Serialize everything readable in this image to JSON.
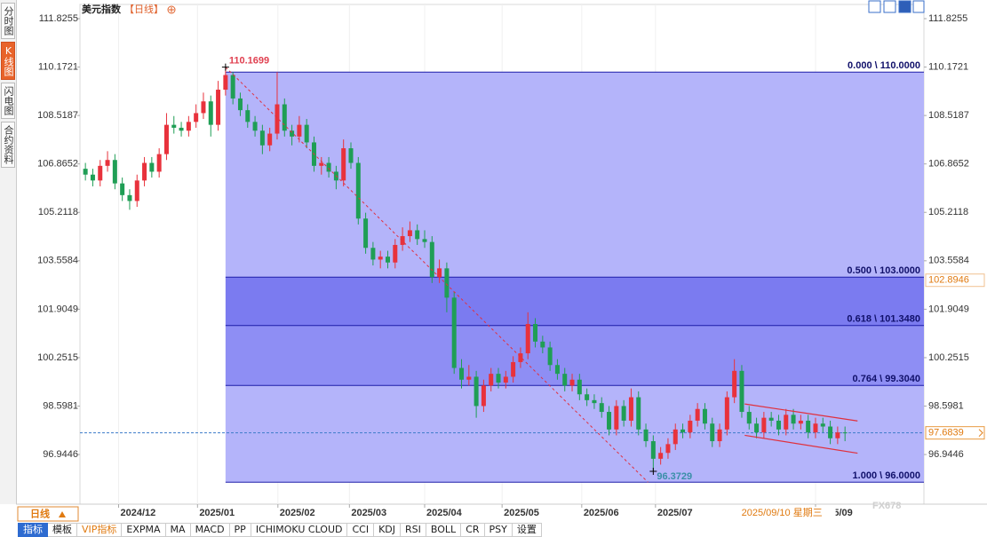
{
  "header": {
    "title": "美元指数",
    "period": "【日线】"
  },
  "sidebar_tabs": [
    "分时图",
    "K线图",
    "闪电图",
    "合约资料"
  ],
  "active_tab_index": 1,
  "period_button": "日线",
  "toolbar": [
    "指标",
    "模板",
    "VIP指标",
    "EXPMA",
    "MA",
    "MACD",
    "PP",
    "ICHIMOKU CLOUD",
    "CCI",
    "KDJ",
    "RSI",
    "BOLL",
    "CR",
    "PSY",
    "设置"
  ],
  "active_tool_index": 0,
  "vip_tool_index": 2,
  "watermark": "FX678",
  "chart_data": {
    "type": "candlestick",
    "up_color": "#e8323c",
    "down_color": "#1f9e55",
    "grid": true,
    "xlim": [
      -0.74,
      113.7
    ],
    "ylim": [
      95.25,
      112.31
    ],
    "yticks": [
      111.8255,
      110.1721,
      108.5187,
      106.8652,
      105.2118,
      103.5584,
      101.9049,
      100.2515,
      98.5981,
      96.9446
    ],
    "xticks": [
      {
        "value": 4.5,
        "label": "2024/12"
      },
      {
        "value": 15.2,
        "label": "2025/01"
      },
      {
        "value": 26.1,
        "label": "2025/02"
      },
      {
        "value": 35.8,
        "label": "2025/03"
      },
      {
        "value": 46.0,
        "label": "2025/04"
      },
      {
        "value": 56.5,
        "label": "2025/05"
      },
      {
        "value": 67.3,
        "label": "2025/06"
      },
      {
        "value": 77.3,
        "label": "2025/07"
      },
      {
        "value": 99,
        "label": "2025/09"
      }
    ],
    "cursor_label": "2025/09/10 星期三",
    "cursor_index": 89.2,
    "last_price": 97.6839,
    "marker_price": 102.8946,
    "high_annotation": {
      "index": 19,
      "value": 110.1699
    },
    "low_annotation": {
      "index": 77,
      "value": 96.3729
    },
    "fib": {
      "levels": [
        {
          "label": "0.000 \\ 110.0000",
          "value": 110
        },
        {
          "label": "0.500 \\ 103.0000",
          "value": 103
        },
        {
          "label": "0.618 \\ 101.3480",
          "value": 101.348
        },
        {
          "label": "0.764 \\ 99.3040",
          "value": 99.304
        },
        {
          "label": "1.000 \\ 96.0000",
          "value": 96
        }
      ],
      "fill_colors": [
        "#b4b4fa",
        "#7b7bf0",
        "#8e8ef4",
        "#b4b4fa"
      ],
      "line_color": "#1c1ca8"
    },
    "channel": [
      {
        "x": [
          89.4,
          104.7
        ],
        "y": [
          98.67,
          98.09
        ]
      },
      {
        "x": [
          89.4,
          104.7
        ],
        "y": [
          97.6,
          96.99
        ]
      }
    ],
    "candles": [
      [
        106.7,
        106.9,
        106.3,
        106.5
      ],
      [
        106.5,
        106.7,
        106.1,
        106.3
      ],
      [
        106.3,
        107.0,
        106.1,
        106.8
      ],
      [
        106.8,
        107.3,
        106.6,
        107.0
      ],
      [
        107.0,
        107.2,
        106.0,
        106.2
      ],
      [
        106.2,
        106.4,
        105.6,
        105.8
      ],
      [
        105.8,
        106.0,
        105.3,
        105.6
      ],
      [
        105.6,
        106.5,
        105.4,
        106.3
      ],
      [
        106.3,
        107.1,
        106.1,
        106.9
      ],
      [
        106.9,
        107.1,
        106.4,
        106.6
      ],
      [
        106.6,
        107.4,
        106.4,
        107.2
      ],
      [
        107.2,
        108.6,
        107.0,
        108.2
      ],
      [
        108.2,
        108.5,
        107.9,
        108.1
      ],
      [
        108.1,
        108.3,
        107.8,
        108.0
      ],
      [
        108.0,
        108.5,
        107.8,
        108.3
      ],
      [
        108.3,
        108.9,
        108.1,
        108.6
      ],
      [
        108.6,
        109.3,
        108.4,
        109.0
      ],
      [
        109.0,
        109.2,
        107.8,
        108.2
      ],
      [
        108.2,
        109.7,
        108.0,
        109.4
      ],
      [
        109.4,
        110.1699,
        109.2,
        109.9
      ],
      [
        109.9,
        110.0,
        108.9,
        109.1
      ],
      [
        109.1,
        109.3,
        108.5,
        108.7
      ],
      [
        108.7,
        108.9,
        108.1,
        108.3
      ],
      [
        108.3,
        108.5,
        107.8,
        108.0
      ],
      [
        108.0,
        108.2,
        107.2,
        107.5
      ],
      [
        107.5,
        108.1,
        107.3,
        107.9
      ],
      [
        107.9,
        110.0,
        107.7,
        108.9
      ],
      [
        108.9,
        109.1,
        107.8,
        108.0
      ],
      [
        108.0,
        108.2,
        107.5,
        107.8
      ],
      [
        107.8,
        108.5,
        107.6,
        108.2
      ],
      [
        108.2,
        108.4,
        107.4,
        107.6
      ],
      [
        107.6,
        107.8,
        106.6,
        106.8
      ],
      [
        106.8,
        107.1,
        106.5,
        106.9
      ],
      [
        106.9,
        107.1,
        106.4,
        106.6
      ],
      [
        106.6,
        106.8,
        106.0,
        106.3
      ],
      [
        106.3,
        107.7,
        106.1,
        107.4
      ],
      [
        107.4,
        107.6,
        106.7,
        106.9
      ],
      [
        106.9,
        107.1,
        104.8,
        105.0
      ],
      [
        105.0,
        105.2,
        103.8,
        104.0
      ],
      [
        104.0,
        104.2,
        103.4,
        103.6
      ],
      [
        103.6,
        103.9,
        103.3,
        103.7
      ],
      [
        103.7,
        103.9,
        103.3,
        103.5
      ],
      [
        103.5,
        104.3,
        103.3,
        104.1
      ],
      [
        104.1,
        104.7,
        103.9,
        104.4
      ],
      [
        104.4,
        104.9,
        104.2,
        104.6
      ],
      [
        104.6,
        104.8,
        104.1,
        104.3
      ],
      [
        104.3,
        104.6,
        104.0,
        104.2
      ],
      [
        104.2,
        104.4,
        102.8,
        103.0
      ],
      [
        103.0,
        103.6,
        102.8,
        103.3
      ],
      [
        103.3,
        103.5,
        101.8,
        102.3
      ],
      [
        102.3,
        102.5,
        99.7,
        99.9
      ],
      [
        99.9,
        100.2,
        99.2,
        99.5
      ],
      [
        99.5,
        100.0,
        99.3,
        99.6
      ],
      [
        99.6,
        99.8,
        98.2,
        98.6
      ],
      [
        98.6,
        99.5,
        98.4,
        99.3
      ],
      [
        99.3,
        99.9,
        99.1,
        99.7
      ],
      [
        99.7,
        99.9,
        99.2,
        99.4
      ],
      [
        99.4,
        99.8,
        99.2,
        99.6
      ],
      [
        99.6,
        100.3,
        99.4,
        100.1
      ],
      [
        100.1,
        100.6,
        99.9,
        100.4
      ],
      [
        100.4,
        101.8,
        100.2,
        101.4
      ],
      [
        101.4,
        101.6,
        100.6,
        100.8
      ],
      [
        100.8,
        101.0,
        100.4,
        100.6
      ],
      [
        100.6,
        100.8,
        99.8,
        100.0
      ],
      [
        100.0,
        100.2,
        99.5,
        99.7
      ],
      [
        99.7,
        99.9,
        99.1,
        99.3
      ],
      [
        99.3,
        99.7,
        99.1,
        99.5
      ],
      [
        99.5,
        99.7,
        98.8,
        99.0
      ],
      [
        99.0,
        99.2,
        98.6,
        98.8
      ],
      [
        98.8,
        99.0,
        98.5,
        98.7
      ],
      [
        98.7,
        98.9,
        98.2,
        98.4
      ],
      [
        98.4,
        98.6,
        97.6,
        97.8
      ],
      [
        97.8,
        98.8,
        97.6,
        98.6
      ],
      [
        98.6,
        98.8,
        97.9,
        98.1
      ],
      [
        98.1,
        99.2,
        97.9,
        98.9
      ],
      [
        98.9,
        99.1,
        97.6,
        97.8
      ],
      [
        97.8,
        98.0,
        97.2,
        97.4
      ],
      [
        97.4,
        97.6,
        96.3729,
        96.8
      ],
      [
        96.8,
        97.2,
        96.6,
        97.0
      ],
      [
        97.0,
        97.5,
        96.8,
        97.3
      ],
      [
        97.3,
        98.0,
        97.1,
        97.8
      ],
      [
        97.8,
        98.0,
        97.5,
        97.7
      ],
      [
        97.7,
        98.3,
        97.5,
        98.1
      ],
      [
        98.1,
        98.7,
        97.9,
        98.5
      ],
      [
        98.5,
        98.7,
        97.8,
        98.0
      ],
      [
        98.0,
        98.2,
        97.2,
        97.4
      ],
      [
        97.4,
        98.0,
        97.2,
        97.8
      ],
      [
        97.8,
        99.1,
        97.6,
        98.9
      ],
      [
        98.9,
        100.2,
        98.7,
        99.8
      ],
      [
        99.8,
        100.0,
        98.2,
        98.4
      ],
      [
        98.4,
        98.6,
        97.8,
        98.0
      ],
      [
        98.0,
        98.2,
        97.5,
        97.7
      ],
      [
        97.7,
        98.4,
        97.5,
        98.2
      ],
      [
        98.2,
        98.4,
        97.9,
        98.1
      ],
      [
        98.1,
        98.3,
        97.6,
        97.8
      ],
      [
        97.8,
        98.5,
        97.6,
        98.3
      ],
      [
        98.3,
        98.5,
        97.8,
        98.0
      ],
      [
        98.0,
        98.3,
        97.8,
        98.1
      ],
      [
        98.1,
        98.3,
        97.5,
        97.7
      ],
      [
        97.7,
        98.2,
        97.5,
        98.0
      ],
      [
        98.0,
        98.2,
        97.7,
        97.9
      ],
      [
        97.9,
        98.1,
        97.3,
        97.5
      ],
      [
        97.5,
        97.9,
        97.3,
        97.7
      ],
      [
        97.7,
        97.9,
        97.4,
        97.6839
      ]
    ]
  }
}
